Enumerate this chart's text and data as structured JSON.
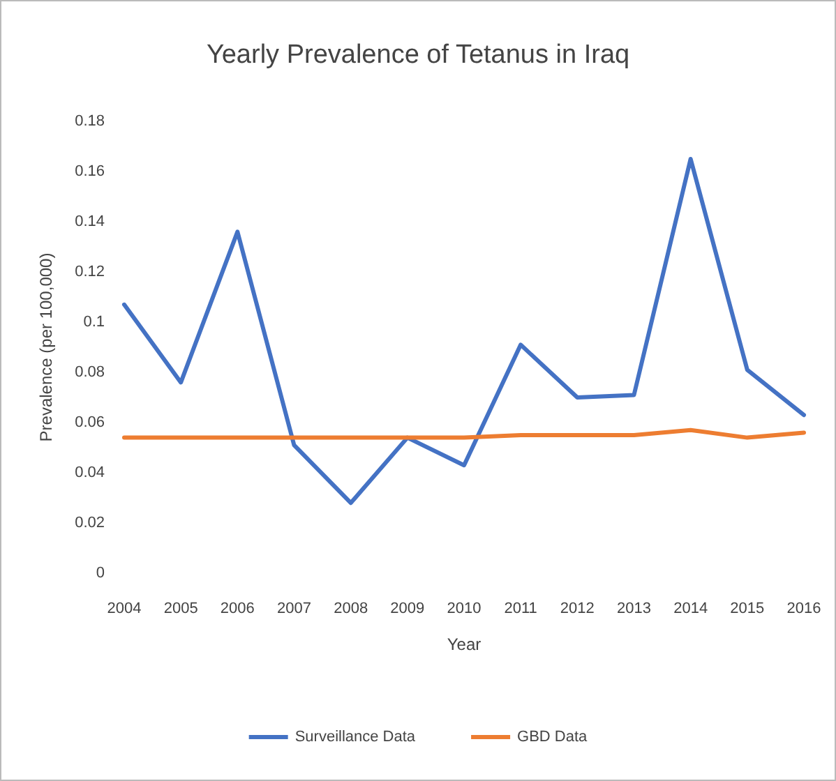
{
  "chart_data": {
    "type": "line",
    "title": "Yearly Prevalence of Tetanus in Iraq",
    "xlabel": "Year",
    "ylabel": "Prevalence (per 100,000)",
    "categories": [
      "2004",
      "2005",
      "2006",
      "2007",
      "2008",
      "2009",
      "2010",
      "2011",
      "2012",
      "2013",
      "2014",
      "2015",
      "2016"
    ],
    "series": [
      {
        "name": "Surveillance Data",
        "color": "#4472c4",
        "values": [
          0.107,
          0.076,
          0.136,
          0.051,
          0.028,
          0.054,
          0.043,
          0.091,
          0.07,
          0.071,
          0.165,
          0.081,
          0.063
        ]
      },
      {
        "name": "GBD Data",
        "color": "#ed7d31",
        "values": [
          0.054,
          0.054,
          0.054,
          0.054,
          0.054,
          0.054,
          0.054,
          0.055,
          0.055,
          0.055,
          0.057,
          0.054,
          0.056
        ]
      }
    ],
    "ylim": [
      0,
      0.18
    ],
    "yticks": [
      0,
      0.02,
      0.04,
      0.06,
      0.08,
      0.1,
      0.12,
      0.14,
      0.16,
      0.18
    ],
    "grid": false,
    "legend": "bottom",
    "marker": "none",
    "line_style": "solid"
  }
}
